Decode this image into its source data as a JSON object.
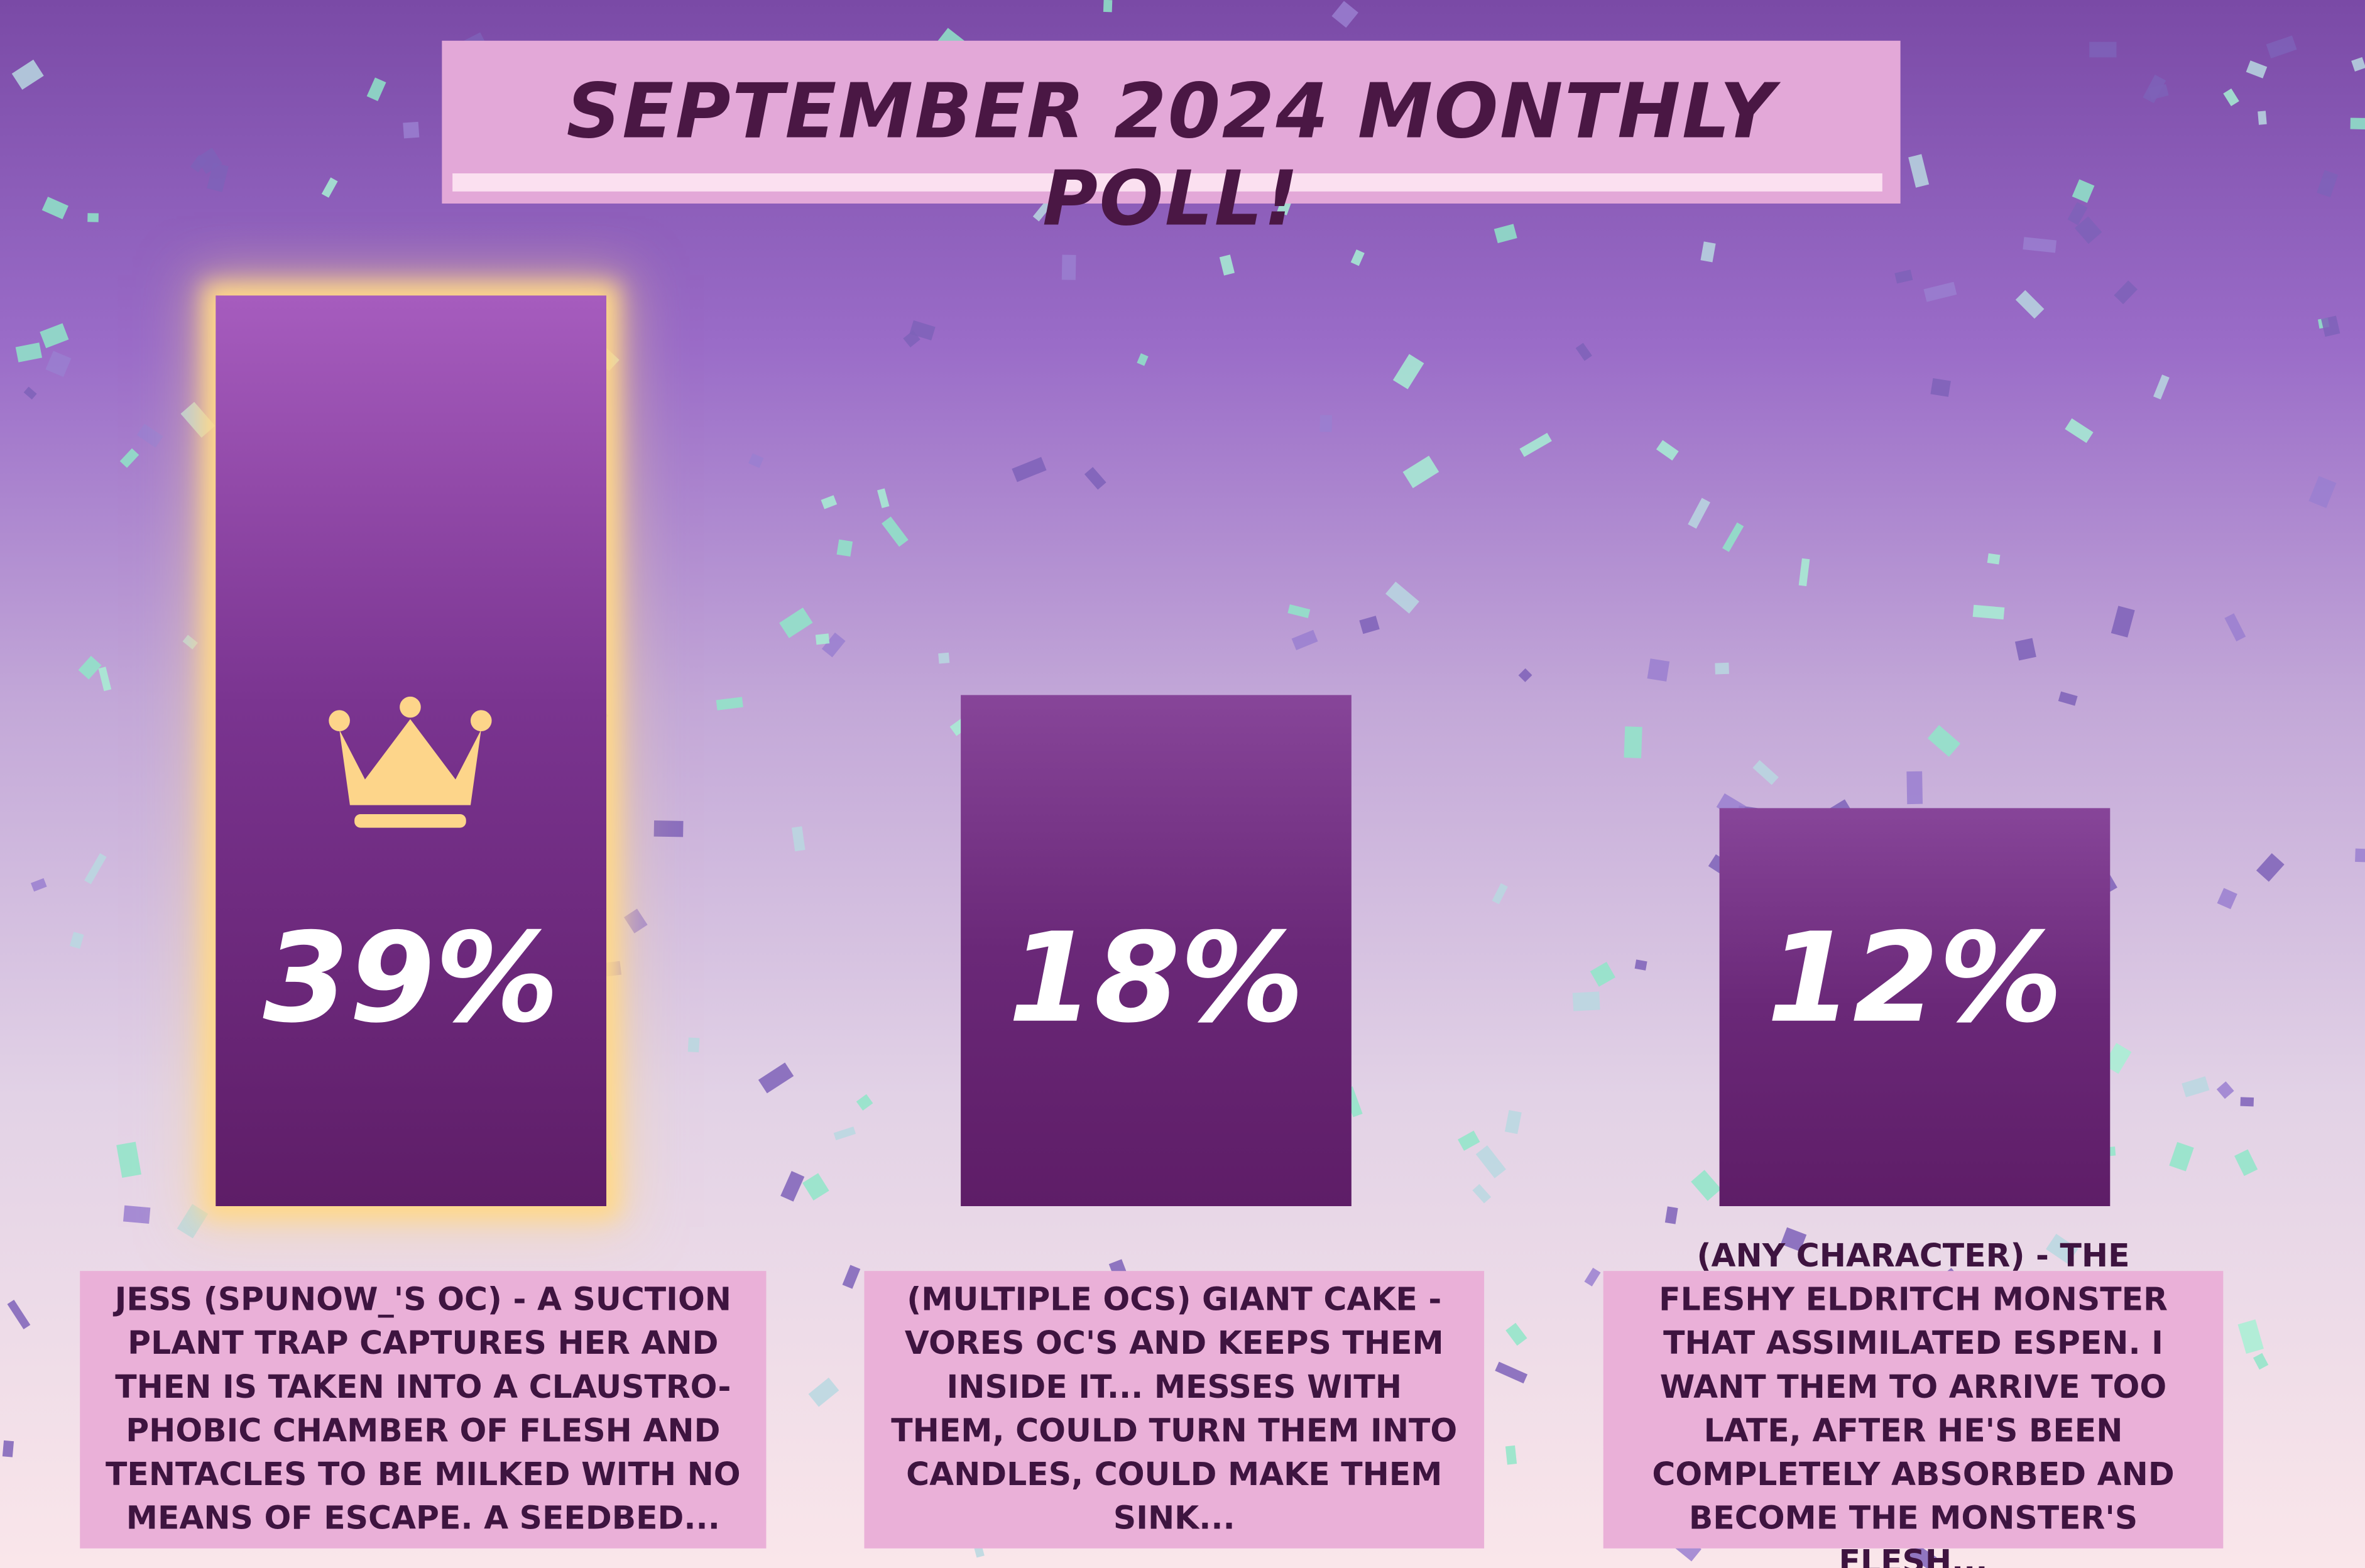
{
  "chart_data": {
    "type": "bar",
    "title": "SEPTEMBER 2024 MONTHLY POLL!",
    "categories": [
      "JESS (SPUNOW_'S OC) - A SUCTION PLANT TRAP CAPTURES HER AND THEN IS TAKEN INTO A CLAUSTRO-PHOBIC CHAMBER OF FLESH AND TENTACLES TO BE MILKED WITH NO MEANS OF ESCAPE. A SEEDBED...",
      "(MULTIPLE OCS) GIANT CAKE - VORES OC'S AND KEEPS THEM INSIDE IT... MESSES WITH THEM, COULD TURN THEM INTO CANDLES, COULD MAKE THEM SINK...",
      "(ANY CHARACTER) - THE FLESHY ELDRITCH MONSTER THAT ASSIMILATED ESPEN. I WANT THEM TO ARRIVE TOO LATE, AFTER HE'S BEEN COMPLETELY ABSORBED AND BECOME THE MONSTER'S FLESH..."
    ],
    "values": [
      39,
      18,
      12
    ],
    "value_labels": [
      "39%",
      "18%",
      "12%"
    ],
    "ylim": [
      -9,
      45
    ]
  }
}
